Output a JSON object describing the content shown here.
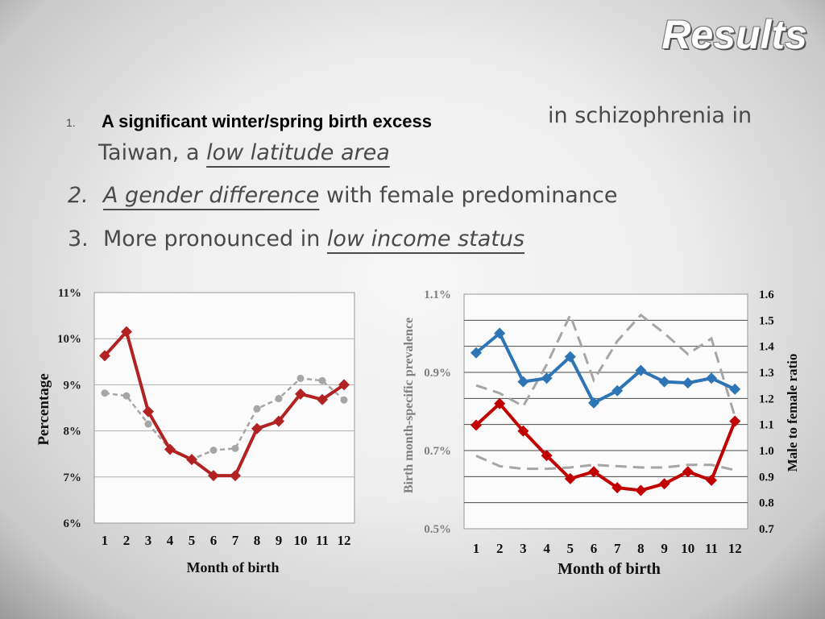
{
  "slide": {
    "title": "Results",
    "bullet1": {
      "num": "1.",
      "bold": "A significant winter/spring birth excess",
      "rest": "in schizophrenia in",
      "cont_plain": "Taiwan, a ",
      "cont_under": "low latitude area"
    },
    "bullet2": {
      "num": "2.",
      "under": "A gender difference",
      "rest": " with female predominance"
    },
    "bullet3": {
      "num": "3.",
      "plain": "More pronounced in ",
      "under": "low income status"
    }
  },
  "chart_data": [
    {
      "type": "line",
      "x": [
        1,
        2,
        3,
        4,
        5,
        6,
        7,
        8,
        9,
        10,
        11,
        12
      ],
      "xtick_labels": [
        "1",
        "2",
        "3",
        "4",
        "5",
        "6",
        "7",
        "8",
        "9",
        "10",
        "11",
        "12"
      ],
      "xlabel": "Month of birth",
      "ylabel": "Percentage",
      "ylim": [
        6,
        11
      ],
      "yticks": [
        "6%",
        "7%",
        "8%",
        "9%",
        "10%",
        "11%"
      ],
      "grid": true,
      "series": [
        {
          "color": "#b22222",
          "style": "solid-diamond",
          "values": [
            9.63,
            10.15,
            8.42,
            7.6,
            7.38,
            7.03,
            7.03,
            8.05,
            8.21,
            8.8,
            8.68,
            9.0
          ]
        },
        {
          "color": "#a6a6a6",
          "style": "dashed-circle",
          "values": [
            8.82,
            8.76,
            8.15,
            7.6,
            7.38,
            7.58,
            7.62,
            8.48,
            8.7,
            9.14,
            9.09,
            8.67
          ]
        }
      ]
    },
    {
      "type": "line",
      "x": [
        1,
        2,
        3,
        4,
        5,
        6,
        7,
        8,
        9,
        10,
        11,
        12
      ],
      "xtick_labels": [
        "1",
        "2",
        "3",
        "4",
        "5",
        "6",
        "7",
        "8",
        "9",
        "10",
        "11",
        "12"
      ],
      "xlabel": "Month of birth",
      "ylabel": "Birth month-specific prevalence",
      "y2label": "Male to female ratio",
      "ylim": [
        0.5,
        1.1
      ],
      "yticks": [
        "0.5%",
        "0.7%",
        "0.9%",
        "1.1%"
      ],
      "y2lim": [
        0.7,
        1.6
      ],
      "y2ticks": [
        "0.7",
        "0.8",
        "0.9",
        "1.0",
        "1.1",
        "1.2",
        "1.3",
        "1.4",
        "1.5",
        "1.6"
      ],
      "grid": true,
      "series": [
        {
          "color": "#2e75b6",
          "axis": "left",
          "style": "solid-diamond",
          "values": [
            0.95,
            1.0,
            0.876,
            0.885,
            0.94,
            0.822,
            0.853,
            0.905,
            0.876,
            0.873,
            0.885,
            0.857
          ]
        },
        {
          "color": "#c00000",
          "axis": "left",
          "style": "solid-diamond",
          "values": [
            0.765,
            0.82,
            0.75,
            0.687,
            0.628,
            0.646,
            0.605,
            0.598,
            0.615,
            0.646,
            0.624,
            0.775
          ]
        },
        {
          "color": "#a6a6a6",
          "axis": "right",
          "style": "dashed",
          "values": [
            1.25,
            1.22,
            1.17,
            1.33,
            1.52,
            1.27,
            1.42,
            1.52,
            1.45,
            1.37,
            1.43,
            1.13
          ]
        },
        {
          "color": "#a6a6a6",
          "axis": "right",
          "style": "dashed",
          "values": [
            0.98,
            0.94,
            0.93,
            0.93,
            0.935,
            0.945,
            0.94,
            0.935,
            0.935,
            0.945,
            0.945,
            0.925
          ]
        }
      ]
    }
  ]
}
